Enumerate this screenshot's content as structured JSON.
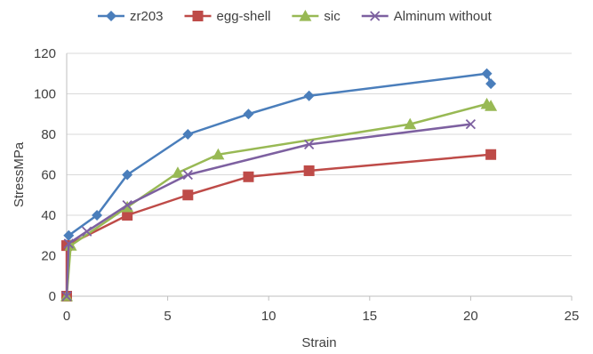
{
  "chart_data": {
    "type": "line",
    "title": "",
    "xlabel": "Strain",
    "ylabel": "StressMPa",
    "xlim": [
      0,
      25
    ],
    "ylim": [
      0,
      120
    ],
    "xticks": [
      0,
      5,
      10,
      15,
      20,
      25
    ],
    "yticks": [
      0,
      20,
      40,
      60,
      80,
      100,
      120
    ],
    "grid": "horizontal",
    "legend_position": "top",
    "series": [
      {
        "name": "zr203",
        "color": "#4a7ebb",
        "marker": "diamond",
        "points": [
          [
            0,
            0
          ],
          [
            0.1,
            30
          ],
          [
            1.5,
            40
          ],
          [
            3,
            60
          ],
          [
            6,
            80
          ],
          [
            9,
            90
          ],
          [
            12,
            99
          ],
          [
            20.8,
            110
          ],
          [
            21,
            105
          ]
        ]
      },
      {
        "name": "egg-shell",
        "color": "#be4b48",
        "marker": "square",
        "points": [
          [
            0,
            0
          ],
          [
            0,
            25
          ],
          [
            3,
            40
          ],
          [
            6,
            50
          ],
          [
            9,
            59
          ],
          [
            12,
            62
          ],
          [
            21,
            70
          ]
        ]
      },
      {
        "name": "sic",
        "color": "#98b954",
        "marker": "triangle",
        "points": [
          [
            0,
            0
          ],
          [
            0.2,
            25
          ],
          [
            3,
            44
          ],
          [
            5.5,
            61
          ],
          [
            7.5,
            70
          ],
          [
            17,
            85
          ],
          [
            20.8,
            95
          ],
          [
            21,
            94
          ]
        ]
      },
      {
        "name": "Alminum without",
        "color": "#7d60a0",
        "marker": "x",
        "points": [
          [
            0,
            0
          ],
          [
            0.1,
            26
          ],
          [
            1,
            32
          ],
          [
            3,
            45
          ],
          [
            6,
            60
          ],
          [
            12,
            75
          ],
          [
            20,
            85
          ]
        ]
      }
    ]
  }
}
